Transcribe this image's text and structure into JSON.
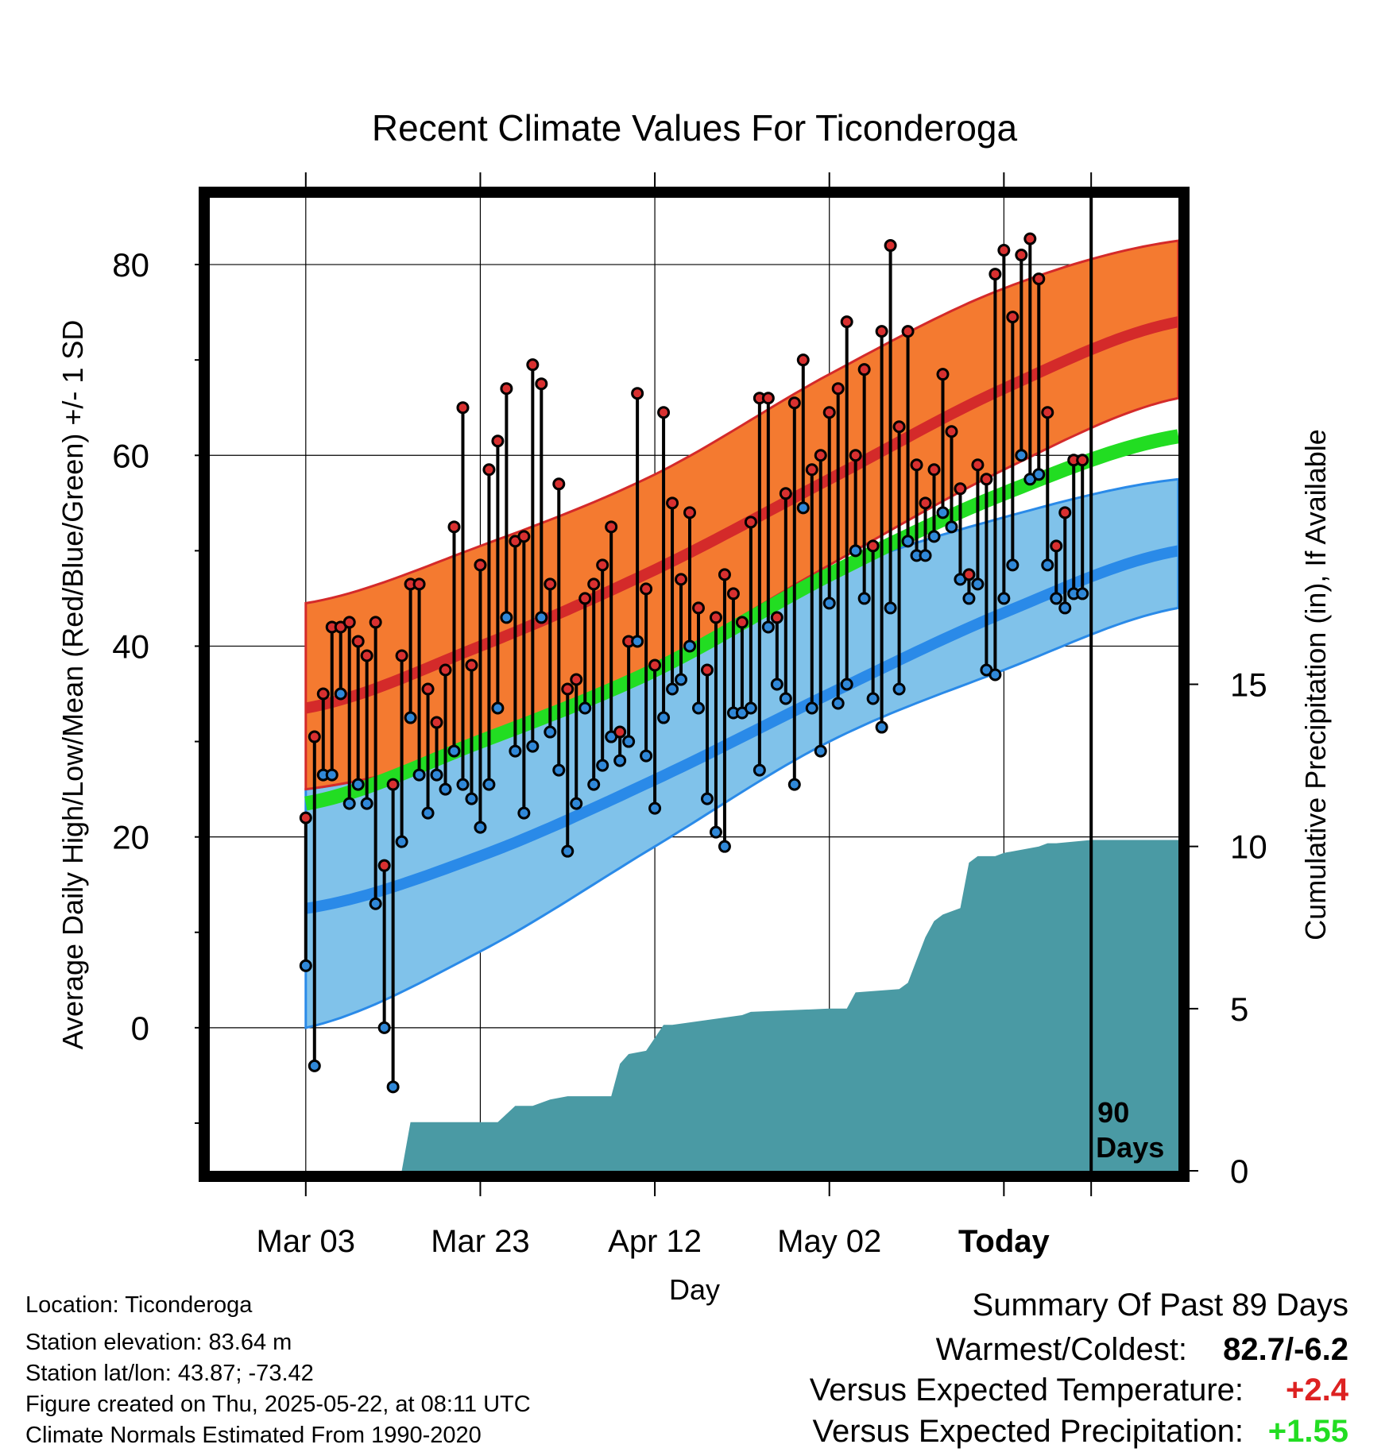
{
  "chart_data": {
    "type": "line",
    "title": "Recent Climate Values For Ticonderoga",
    "xlabel": "Day",
    "ylabel": "Average Daily High/Low/Mean (Red/Blue/Green) +/- 1 SD",
    "y2label": "Cumulative Precipitation (in), If Available",
    "ylim": [
      -15,
      87
    ],
    "y2lim": [
      0,
      30
    ],
    "yticks": [
      "0",
      "20",
      "40",
      "60",
      "80"
    ],
    "y2ticks": [
      "0",
      "5",
      "10",
      "15"
    ],
    "xtick_labels": [
      "Mar 03",
      "Mar 23",
      "Apr 12",
      "May 02",
      "Today"
    ],
    "today_label_line1": "90",
    "today_label_line2": "Days",
    "grid": true,
    "colors": {
      "high_band": "#f47a30",
      "high_mean": "#d42a2a",
      "low_band": "#80c2ea",
      "low_mean": "#2a8ae8",
      "avg_mean": "#22dd22",
      "precip": "#4a9aa4",
      "high_dot": "#d83030",
      "low_dot": "#3088d8"
    },
    "normals": {
      "days": [
        0,
        20,
        40,
        60,
        80,
        100
      ],
      "high_mean": [
        33.5,
        40.0,
        48.0,
        57.5,
        67.0,
        74.0
      ],
      "high_upper": [
        44.5,
        50.5,
        58.0,
        68.5,
        77.5,
        82.5
      ],
      "high_lower": [
        25.0,
        29.5,
        38.0,
        48.5,
        58.5,
        66.0
      ],
      "low_mean": [
        12.5,
        18.0,
        26.0,
        35.0,
        43.5,
        50.0
      ],
      "low_upper": [
        25.0,
        29.5,
        38.0,
        47.5,
        53.5,
        57.5
      ],
      "low_lower": [
        0.0,
        8.0,
        19.0,
        30.0,
        37.5,
        44.0
      ],
      "avg_mean": [
        23.5,
        30.0,
        37.5,
        47.5,
        56.0,
        62.0
      ]
    },
    "daily_days": [
      0,
      1,
      2,
      3,
      4,
      5,
      6,
      7,
      8,
      9,
      10,
      11,
      12,
      13,
      14,
      15,
      16,
      17,
      18,
      19,
      20,
      21,
      22,
      23,
      24,
      25,
      26,
      27,
      28,
      29,
      30,
      31,
      32,
      33,
      34,
      35,
      36,
      37,
      38,
      39,
      40,
      41,
      42,
      43,
      44,
      45,
      46,
      47,
      48,
      49,
      50,
      51,
      52,
      53,
      54,
      55,
      56,
      57,
      58,
      59,
      60,
      61,
      62,
      63,
      64,
      65,
      66,
      67,
      68,
      69,
      70,
      71,
      72,
      73,
      74,
      75,
      76,
      77,
      78,
      79,
      80,
      81,
      82,
      83,
      84,
      85,
      86,
      87,
      88,
      89
    ],
    "daily_high": [
      22.0,
      30.5,
      35.0,
      42.0,
      42.0,
      42.5,
      40.5,
      39.0,
      42.5,
      17.0,
      25.5,
      39.0,
      46.5,
      46.5,
      35.5,
      32.0,
      37.5,
      52.5,
      65.0,
      38.0,
      48.5,
      58.5,
      61.5,
      67.0,
      51.0,
      51.5,
      69.5,
      67.5,
      46.5,
      57.0,
      35.5,
      36.5,
      45.0,
      46.5,
      48.5,
      52.5,
      31.0,
      40.5,
      66.5,
      46.0,
      38.0,
      64.5,
      55.0,
      47.0,
      54.0,
      44.0,
      37.5,
      43.0,
      47.5,
      45.5,
      42.5,
      53.0,
      66.0,
      66.0,
      43.0,
      56.0,
      65.5,
      70.0,
      58.5,
      60.0,
      64.5,
      67.0,
      74.0,
      60.0,
      69.0,
      50.5,
      73.0,
      82.0,
      63.0,
      73.0,
      59.0,
      55.0,
      58.5,
      68.5,
      62.5,
      56.5,
      47.5,
      59.0,
      57.5,
      79.0,
      81.5,
      74.5,
      81.0,
      82.7,
      78.5,
      64.5,
      50.5,
      54.0,
      59.5,
      59.5
    ],
    "daily_low": [
      6.5,
      -4.0,
      26.5,
      26.5,
      35.0,
      23.5,
      25.5,
      23.5,
      13.0,
      0.0,
      -6.2,
      19.5,
      32.5,
      26.5,
      22.5,
      26.5,
      25.0,
      29.0,
      25.5,
      24.0,
      21.0,
      25.5,
      33.5,
      43.0,
      29.0,
      22.5,
      29.5,
      43.0,
      31.0,
      27.0,
      18.5,
      23.5,
      33.5,
      25.5,
      27.5,
      30.5,
      28.0,
      30.0,
      40.5,
      28.5,
      23.0,
      32.5,
      35.5,
      36.5,
      40.0,
      33.5,
      24.0,
      20.5,
      19.0,
      33.0,
      33.0,
      33.5,
      27.0,
      42.0,
      36.0,
      34.5,
      25.5,
      54.5,
      33.5,
      29.0,
      44.5,
      34.0,
      36.0,
      50.0,
      45.0,
      34.5,
      31.5,
      44.0,
      35.5,
      51.0,
      49.5,
      49.5,
      51.5,
      54.0,
      52.5,
      47.0,
      45.0,
      46.5,
      37.5,
      37.0,
      45.0,
      48.5,
      60.0,
      57.5,
      58.0,
      48.5,
      45.0,
      44.0,
      45.5,
      45.5
    ],
    "precip": {
      "days": [
        0,
        11,
        12,
        22,
        24,
        26,
        28,
        30,
        35,
        36,
        37,
        39,
        40,
        41,
        42,
        50,
        51,
        60,
        62,
        63,
        68,
        69,
        70,
        71,
        72,
        73,
        75,
        76,
        77,
        79,
        80,
        84,
        85,
        86,
        90,
        100
      ],
      "values": [
        0,
        0,
        1.5,
        1.5,
        2.0,
        2.0,
        2.2,
        2.3,
        2.3,
        3.3,
        3.6,
        3.7,
        4.1,
        4.5,
        4.5,
        4.8,
        4.9,
        5.0,
        5.0,
        5.5,
        5.6,
        5.8,
        6.5,
        7.2,
        7.7,
        7.9,
        8.1,
        9.5,
        9.7,
        9.7,
        9.8,
        10.0,
        10.1,
        10.1,
        10.2,
        10.2
      ]
    },
    "today_day": 90
  },
  "footer": {
    "location": "Location: Ticonderoga",
    "elevation": "Station elevation: 83.64 m",
    "latlon": "Station lat/lon: 43.87; -73.42",
    "created": "Figure created on Thu, 2025-05-22, at 08:11 UTC",
    "normals": "Climate Normals Estimated From 1990-2020"
  },
  "summary": {
    "title": "Summary Of Past 89 Days",
    "warm_cold_label": "Warmest/Coldest:",
    "warm_cold_value": "82.7/-6.2",
    "temp_label": "Versus Expected Temperature:",
    "temp_value": "+2.4",
    "precip_label": "Versus Expected Precipitation:",
    "precip_value": "+1.55",
    "temp_color": "#dd2222",
    "precip_color": "#22dd22"
  }
}
